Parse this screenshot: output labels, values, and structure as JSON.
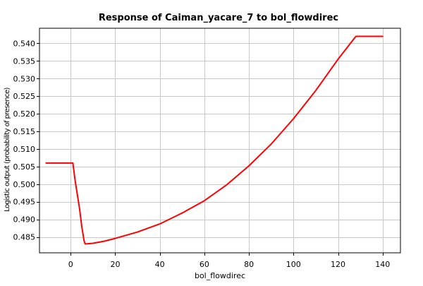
{
  "chart_data": {
    "type": "line",
    "title": "Response of Caiman_yacare_7 to bol_flowdirec",
    "xlabel": "bol_flowdirec",
    "ylabel": "Logistic output (probability of presence)",
    "xlim": [
      -14,
      148
    ],
    "ylim": [
      0.4805,
      0.5443
    ],
    "x_ticks": [
      0,
      20,
      40,
      60,
      80,
      100,
      120,
      140
    ],
    "y_ticks": [
      0.485,
      0.49,
      0.495,
      0.5,
      0.505,
      0.51,
      0.515,
      0.52,
      0.525,
      0.53,
      0.535,
      0.54
    ],
    "y_tick_labels": [
      "0.485",
      "0.490",
      "0.495",
      "0.500",
      "0.505",
      "0.510",
      "0.515",
      "0.520",
      "0.525",
      "0.530",
      "0.535",
      "0.540"
    ],
    "grid": true,
    "legend": "none",
    "series": [
      {
        "color": "#ff0000",
        "x": [
          -11,
          1,
          2,
          4,
          5,
          6,
          6.5,
          10,
          15,
          20,
          30,
          40,
          50,
          60,
          70,
          80,
          90,
          100,
          110,
          120,
          128,
          140
        ],
        "y": [
          0.506,
          0.506,
          0.501,
          0.493,
          0.488,
          0.484,
          0.483,
          0.4832,
          0.4838,
          0.4846,
          0.4864,
          0.4887,
          0.4918,
          0.4953,
          0.4998,
          0.5052,
          0.5114,
          0.5186,
          0.5266,
          0.5355,
          0.542,
          0.542
        ]
      }
    ]
  }
}
